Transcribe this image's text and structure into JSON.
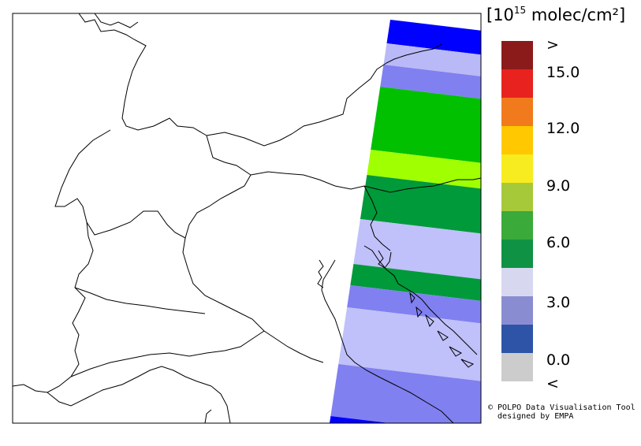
{
  "unit": {
    "prefix": "[10",
    "exp": "15",
    "suffix": " molec/cm²]"
  },
  "legend": {
    "ticks": [
      ">",
      "15.0",
      "12.0",
      "9.0",
      "6.0",
      "3.0",
      "0.0",
      "<"
    ],
    "bins": [
      {
        "color": "#8b1a1a",
        "label": "> 15.0"
      },
      {
        "color": "#e8221f",
        "label": "13.5–15.0"
      },
      {
        "color": "#f07a1c",
        "label": "12.0–13.5"
      },
      {
        "color": "#ffc800",
        "label": "10.5–12.0"
      },
      {
        "color": "#f7ec1f",
        "label": "9.0–10.5"
      },
      {
        "color": "#a6c93a",
        "label": "7.5–9.0"
      },
      {
        "color": "#3aaa3a",
        "label": "6.0–7.5"
      },
      {
        "color": "#0f9244",
        "label": "4.5–6.0"
      },
      {
        "color": "#d7d7f0",
        "label": "3.0–4.5"
      },
      {
        "color": "#8a8cd2",
        "label": "1.5–3.0"
      },
      {
        "color": "#2e54a8",
        "label": "0.0–1.5"
      },
      {
        "color": "#cccccc",
        "label": "< 0.0"
      }
    ]
  },
  "swath": {
    "bands": [
      {
        "color": "#0000ff",
        "value_bin": "< 0 / 0.0–1.5"
      },
      {
        "color": "#b9b9f7",
        "value_bin": "3.0–4.5"
      },
      {
        "color": "#8080f0",
        "value_bin": "1.5–3.0"
      },
      {
        "color": "#00c000",
        "value_bin": "4.5–6.0"
      },
      {
        "color": "#a0ff00",
        "value_bin": "7.5–9.0"
      },
      {
        "color": "#009a3a",
        "value_bin": "4.5–6.0"
      },
      {
        "color": "#c0c0fa",
        "value_bin": "3.0–4.5"
      },
      {
        "color": "#009a3a",
        "value_bin": "4.5–6.0"
      },
      {
        "color": "#8080f0",
        "value_bin": "1.5–3.0"
      },
      {
        "color": "#c0c0fa",
        "value_bin": "3.0–4.5"
      },
      {
        "color": "#8080f0",
        "value_bin": "1.5–3.0"
      },
      {
        "color": "#0000ff",
        "value_bin": "0.0–1.5"
      }
    ]
  },
  "credit": {
    "line1": "© POLPO Data Visualisation Tool",
    "line2": "  designed by EMPA"
  }
}
